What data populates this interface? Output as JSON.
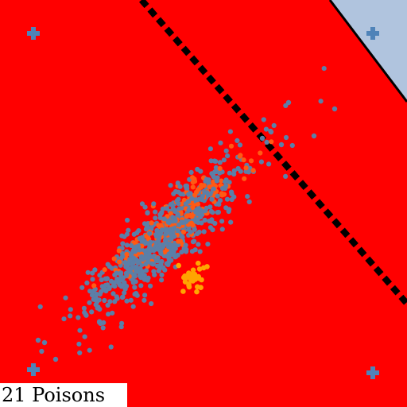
{
  "caption": {
    "label": "21 Poisons"
  },
  "colors": {
    "background_region": "#ff0000",
    "other_region": "#b0c4de",
    "boundary_solid": "#000000",
    "boundary_dotted": "#000000",
    "clean_points": "#5b7fa8",
    "poison_points": "#ff5a14",
    "poison_alt_points": "#ffa500",
    "corner_markers": "#4f83b8",
    "caption_bg": "#ffffff"
  },
  "icons": {
    "corner_marker": "plus-icon"
  }
}
